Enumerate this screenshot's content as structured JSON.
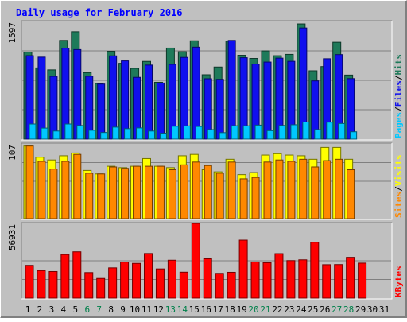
{
  "chart_data": [
    {
      "type": "bar",
      "title": "Daily usage for February 2016",
      "days": [
        "1",
        "2",
        "3",
        "4",
        "5",
        "6",
        "7",
        "8",
        "9",
        "10",
        "11",
        "12",
        "13",
        "14",
        "15",
        "16",
        "17",
        "18",
        "19",
        "20",
        "21",
        "22",
        "23",
        "24",
        "25",
        "26",
        "27",
        "28",
        "29",
        "30",
        "31"
      ],
      "weekend_days": [
        "6",
        "7",
        "13",
        "14",
        "20",
        "21",
        "27",
        "28"
      ],
      "ymax_label": "1597",
      "ylim": [
        0,
        1597
      ],
      "series": [
        {
          "name": "Hits",
          "color": "#1e7a5a",
          "values": [
            1181,
            967,
            940,
            1340,
            1458,
            903,
            756,
            1192,
            1029,
            961,
            1055,
            772,
            1236,
            1186,
            1335,
            874,
            979,
            1330,
            1138,
            1095,
            1197,
            1132,
            1150,
            1564,
            928,
            985,
            1315,
            870,
            0,
            0,
            0
          ]
        },
        {
          "name": "Files",
          "color": "#1010ee",
          "values": [
            1133,
            1113,
            852,
            1235,
            1215,
            854,
            748,
            1130,
            1062,
            839,
            1005,
            762,
            1015,
            1109,
            1248,
            820,
            812,
            1340,
            1105,
            1019,
            1046,
            1099,
            1056,
            1509,
            791,
            1091,
            1147,
            822,
            0,
            0,
            0
          ]
        },
        {
          "name": "Pages",
          "color": "#00c8ff",
          "values": [
            205,
            150,
            110,
            205,
            185,
            120,
            90,
            163,
            142,
            152,
            110,
            80,
            175,
            180,
            172,
            130,
            88,
            182,
            181,
            190,
            115,
            186,
            195,
            232,
            130,
            230,
            212,
            100,
            0,
            0,
            0
          ]
        }
      ]
    },
    {
      "type": "bar",
      "ymax_label": "107",
      "ylim": [
        0,
        107
      ],
      "series": [
        {
          "name": "Visits",
          "color": "#ffff00",
          "values": [
            104,
            88,
            84,
            90,
            94,
            69,
            64,
            75,
            73,
            75,
            86,
            75,
            73,
            90,
            92,
            70,
            67,
            85,
            63,
            66,
            91,
            93,
            91,
            90,
            85,
            102,
            102,
            85,
            0,
            0,
            0
          ]
        },
        {
          "name": "Sites",
          "color": "#ff8800",
          "values": [
            104,
            82,
            71,
            82,
            92,
            65,
            64,
            74,
            72,
            75,
            75,
            75,
            70,
            77,
            81,
            76,
            65,
            81,
            57,
            59,
            81,
            84,
            82,
            85,
            74,
            83,
            85,
            70,
            0,
            0,
            0
          ]
        }
      ]
    },
    {
      "type": "bar",
      "ymax_label": "56931",
      "ylim": [
        0,
        56931
      ],
      "series": [
        {
          "name": "KBytes",
          "color": "#ff0000",
          "values": [
            25000,
            21000,
            20300,
            33200,
            35300,
            19500,
            15000,
            23100,
            27500,
            26500,
            34000,
            22300,
            28900,
            19800,
            56931,
            30000,
            18900,
            19700,
            44200,
            27600,
            27000,
            33900,
            28600,
            29200,
            42600,
            25500,
            25600,
            31100,
            26700,
            0,
            0
          ]
        }
      ]
    }
  ]
}
